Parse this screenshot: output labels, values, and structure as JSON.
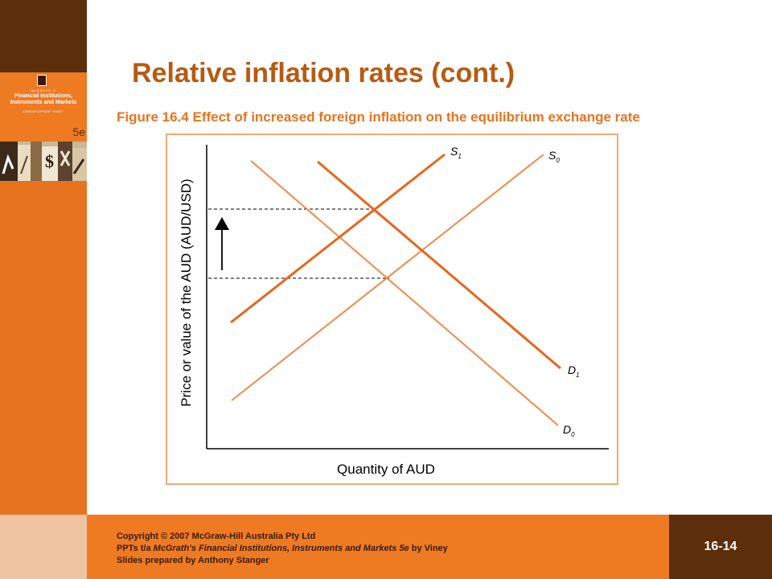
{
  "slide": {
    "title": "Relative inflation rates (cont.)",
    "figure_caption": "Figure 16.4 Effect of increased foreign inflation on the equilibrium exchange rate",
    "slide_number": "16-14"
  },
  "book_cover": {
    "series": "McGRATH'S",
    "title": "Financial Institutions, Instruments and Markets",
    "author": "CHRISTOPHER VINEY",
    "edition": "5e"
  },
  "footer": {
    "line1": "Copyright © 2007 McGraw-Hill Australia Pty Ltd",
    "line2_prefix": "PPTs t/a ",
    "line2_italic": "McGrath's Financial Institutions, Instruments and Markets 5e",
    "line2_suffix": " by Viney",
    "line3": "Slides prepared by Anthony  Stanger"
  },
  "chart_data": {
    "type": "line",
    "xlabel": "Quantity of AUD",
    "ylabel": "Price or value of the AUD (AUD/USD)",
    "lines": [
      {
        "label": "S",
        "subscript": "1",
        "role": "supply-shifted"
      },
      {
        "label": "S",
        "subscript": "0",
        "role": "supply-original"
      },
      {
        "label": "D",
        "subscript": "1",
        "role": "demand-shifted"
      },
      {
        "label": "D",
        "subscript": "0",
        "role": "demand-original"
      }
    ],
    "shift_direction": "up",
    "colors": {
      "S1": "#e8651c",
      "D1": "#e8651c",
      "S0": "#f08a4b",
      "D0": "#f08a4b",
      "axis": "#000000",
      "guide": "#000000"
    }
  }
}
